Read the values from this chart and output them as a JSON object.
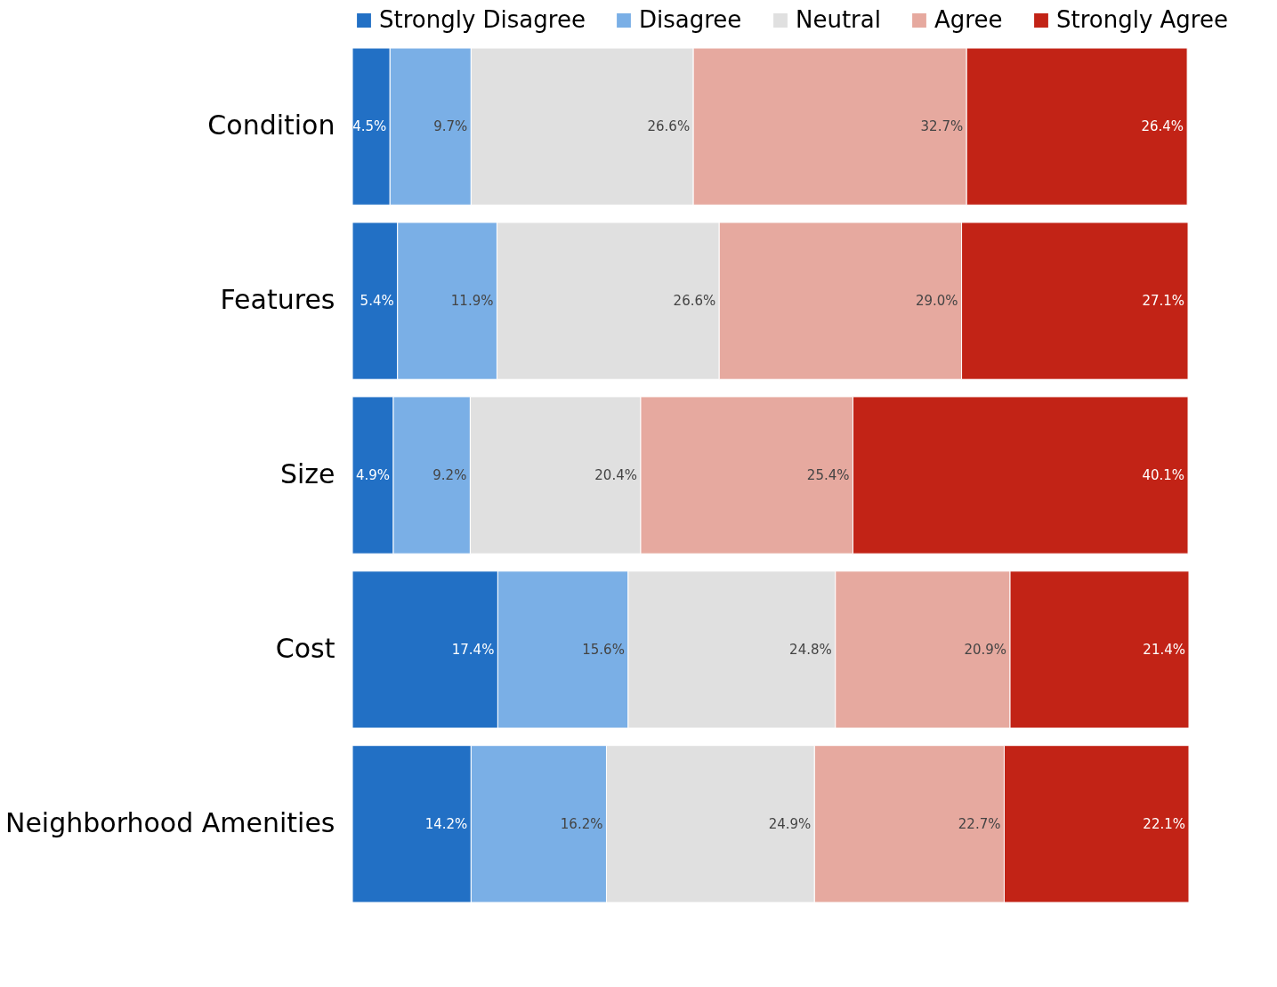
{
  "chart_data": {
    "type": "bar",
    "orientation": "horizontal",
    "stacked": true,
    "legend": "top",
    "tick_labels": "y",
    "xlim": [
      0,
      100.1
    ],
    "categories": [
      "Condition",
      "Features",
      "Size",
      "Cost",
      "Neighborhood Amenities"
    ],
    "series": [
      {
        "name": "Strongly Disagree",
        "color": "#2270c5",
        "values": [
          4.5,
          5.4,
          4.9,
          17.4,
          14.2
        ],
        "value_labels": [
          "4.5%",
          "5.4%",
          "4.9%",
          "17.4%",
          "14.2%"
        ]
      },
      {
        "name": "Disagree",
        "color": "#7aafe6",
        "values": [
          9.7,
          11.9,
          9.2,
          15.6,
          16.2
        ],
        "value_labels": [
          "9.7%",
          "11.9%",
          "9.2%",
          "15.6%",
          "16.2%"
        ]
      },
      {
        "name": "Neutral",
        "color": "#e0e0e0",
        "values": [
          26.6,
          26.6,
          20.4,
          24.8,
          24.9
        ],
        "value_labels": [
          "26.6%",
          "26.6%",
          "20.4%",
          "24.8%",
          "24.9%"
        ]
      },
      {
        "name": "Agree",
        "color": "#e6a99f",
        "values": [
          32.7,
          29.0,
          25.4,
          20.9,
          22.7
        ],
        "value_labels": [
          "32.7%",
          "29.0%",
          "25.4%",
          "20.9%",
          "22.7%"
        ]
      },
      {
        "name": "Strongly Agree",
        "color": "#c22316",
        "values": [
          26.4,
          27.1,
          40.1,
          21.4,
          22.1
        ],
        "value_labels": [
          "26.4%",
          "27.1%",
          "40.1%",
          "21.4%",
          "22.1%"
        ]
      }
    ]
  }
}
